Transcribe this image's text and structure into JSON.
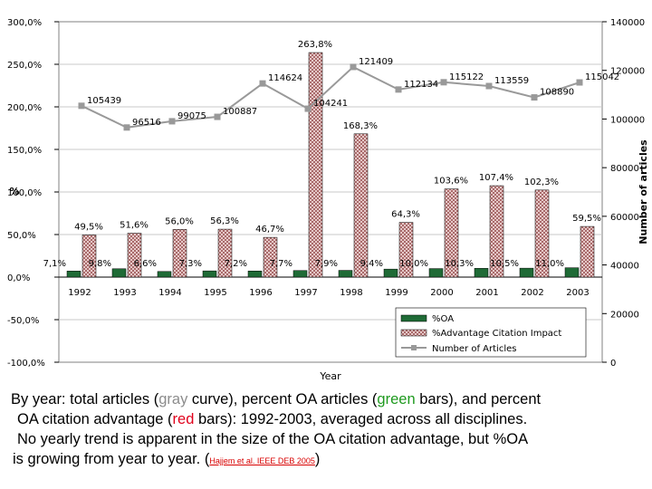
{
  "chart_data": {
    "type": "bar",
    "xlabel": "Year",
    "ylabel_left": "%",
    "ylabel_right": "Number of articles",
    "categories": [
      "1992",
      "1993",
      "1994",
      "1995",
      "1996",
      "1997",
      "1998",
      "1999",
      "2000",
      "2001",
      "2002",
      "2003"
    ],
    "ylim_left": [
      -100,
      300
    ],
    "ylim_right": [
      0,
      140000
    ],
    "left_ticks": [
      "300,0%",
      "250,0%",
      "200,0%",
      "150,0%",
      "100,0%",
      "50,0%",
      "0,0%",
      "-50,0%",
      "-100,0%"
    ],
    "right_ticks": [
      "140000",
      "120000",
      "100000",
      "80000",
      "60000",
      "40000",
      "20000",
      "0"
    ],
    "series": [
      {
        "name": "%OA",
        "type": "bar",
        "axis": "left",
        "color": "#1f6b36",
        "values": [
          7.1,
          9.8,
          6.6,
          7.3,
          7.2,
          7.7,
          7.9,
          9.4,
          10.0,
          10.3,
          10.5,
          11.0
        ],
        "labels": [
          "7,1%",
          "9,8%",
          "6,6%",
          "7,3%",
          "7,2%",
          "7,7%",
          "7,9%",
          "9,4%",
          "10,0%",
          "10,3%",
          "10,5%",
          "11,0%"
        ]
      },
      {
        "name": "%Advantage Citation Impact",
        "type": "bar",
        "axis": "left",
        "color": "#c89a9a",
        "values": [
          49.5,
          51.6,
          56.0,
          56.3,
          46.7,
          263.8,
          168.3,
          64.3,
          103.6,
          107.4,
          102.3,
          59.5
        ],
        "labels": [
          "49,5%",
          "51,6%",
          "56,0%",
          "56,3%",
          "46,7%",
          "263,8%",
          "168,3%",
          "64,3%",
          "103,6%",
          "107,4%",
          "102,3%",
          "59,5%"
        ]
      },
      {
        "name": "Number of Articles",
        "type": "line",
        "axis": "right",
        "color": "#999999",
        "values": [
          105439,
          96516,
          99075,
          100887,
          114624,
          104241,
          121409,
          112134,
          115122,
          113559,
          108890,
          115042
        ],
        "labels": [
          "105439",
          "96516",
          "99075",
          "100887",
          "114624",
          "104241",
          "121409",
          "112134",
          "115122",
          "113559",
          "108890",
          "115042"
        ]
      }
    ],
    "legend_position": "bottom-right"
  },
  "caption": {
    "l1a": "By year: total articles (",
    "l1_gray": "gray",
    "l1b": " curve), percent OA articles (",
    "l1_green": "green",
    "l1c": " bars), and percent",
    "l2a": "OA citation advantage (",
    "l2_red": "red",
    "l2b": " bars): 1992-2003, averaged across all disciplines.",
    "l3": "No yearly trend is apparent in the size of the OA citation advantage, but %OA",
    "l4a": "is growing from year to year. (",
    "l4_ref": "Hajjem et al. IEEE DEB 2005",
    "l4b": ")"
  }
}
